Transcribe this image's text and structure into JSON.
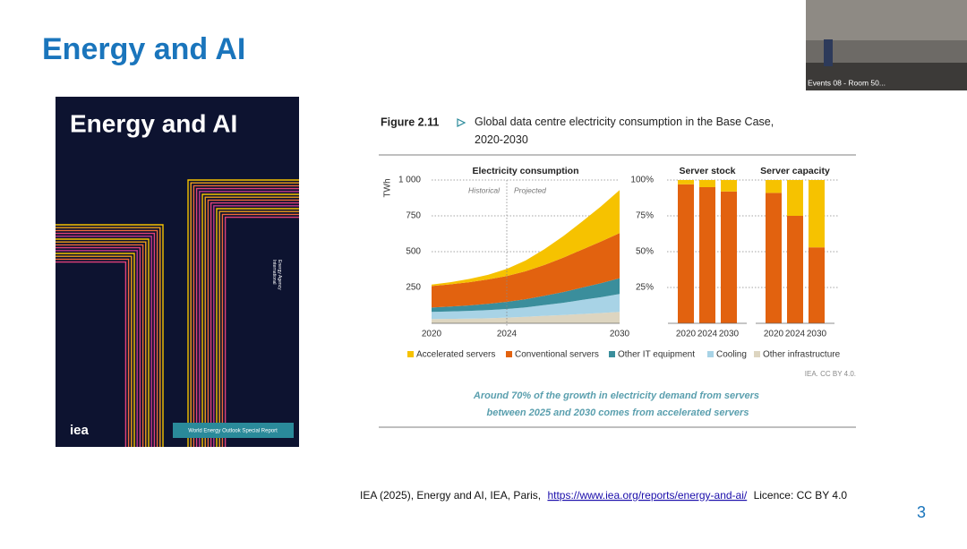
{
  "slide": {
    "title": "Energy and AI",
    "page_number": "3"
  },
  "video": {
    "label": "Events 08 - Room 50..."
  },
  "cover": {
    "title": "Energy and AI",
    "publisher_lines": [
      "International",
      "Energy Agency"
    ],
    "logo": "iea",
    "badge": "World Energy Outlook Special Report"
  },
  "figure": {
    "number": "Figure 2.11",
    "title_lines": [
      "Global data centre electricity consumption in the Base Case,",
      "2020-2030"
    ],
    "source": "IEA. CC BY 4.0.",
    "caption_lines": [
      "Around 70% of the growth in electricity demand from servers",
      "between 2025 and 2030 comes from accelerated servers"
    ]
  },
  "chart_data": [
    {
      "type": "area",
      "stacked": true,
      "title": "Electricity consumption",
      "y_label": "TWh",
      "x": [
        2020,
        2021,
        2022,
        2023,
        2024,
        2025,
        2026,
        2027,
        2028,
        2029,
        2030
      ],
      "xlim": [
        2020,
        2030
      ],
      "xticks": [
        2020,
        2024,
        2030
      ],
      "ylim": [
        0,
        1000
      ],
      "yticks": [
        250,
        500,
        750,
        {
          "value": 1000,
          "label": "1 000"
        }
      ],
      "grid": true,
      "divider": 2024,
      "annotations": [
        "Historical",
        "Projected"
      ],
      "series": [
        {
          "name": "Other infrastructure",
          "color": "#ddd5c0",
          "values": [
            30,
            31,
            33,
            35,
            40,
            45,
            52,
            58,
            65,
            72,
            80
          ]
        },
        {
          "name": "Cooling",
          "color": "#a8d3e6",
          "values": [
            50,
            52,
            54,
            57,
            60,
            66,
            75,
            85,
            98,
            110,
            125
          ]
        },
        {
          "name": "Other IT equipment",
          "color": "#3a8e9c",
          "values": [
            30,
            34,
            38,
            44,
            50,
            57,
            65,
            75,
            86,
            98,
            110
          ]
        },
        {
          "name": "Conventional servers",
          "color": "#e2620f",
          "values": [
            150,
            155,
            162,
            170,
            180,
            195,
            215,
            240,
            265,
            290,
            315
          ]
        },
        {
          "name": "Accelerated servers",
          "color": "#f6c200",
          "values": [
            10,
            15,
            22,
            32,
            50,
            75,
            110,
            150,
            195,
            245,
            300
          ]
        }
      ]
    },
    {
      "type": "bar",
      "stacked": true,
      "title": "Server stock",
      "categories": [
        "2020",
        "2024",
        "2030"
      ],
      "ylim": [
        0,
        100
      ],
      "yticks": [
        {
          "value": 25,
          "label": "25%"
        },
        {
          "value": 50,
          "label": "50%"
        },
        {
          "value": 75,
          "label": "75%"
        },
        {
          "value": 100,
          "label": "100%"
        }
      ],
      "grid": true,
      "series": [
        {
          "color": "#e2620f",
          "values": [
            97,
            95,
            92
          ]
        },
        {
          "color": "#f6c200",
          "values": [
            3,
            5,
            8
          ]
        }
      ]
    },
    {
      "type": "bar",
      "stacked": true,
      "title": "Server capacity",
      "categories": [
        "2020",
        "2024",
        "2030"
      ],
      "ylim": [
        0,
        100
      ],
      "series": [
        {
          "color": "#e2620f",
          "values": [
            91,
            75,
            53
          ]
        },
        {
          "color": "#f6c200",
          "values": [
            9,
            25,
            47
          ]
        }
      ]
    }
  ],
  "footer": {
    "citation": "IEA (2025), Energy and AI, IEA, Paris,",
    "link": "https://www.iea.org/reports/energy-and-ai/",
    "licence": "Licence: CC BY 4.0"
  }
}
